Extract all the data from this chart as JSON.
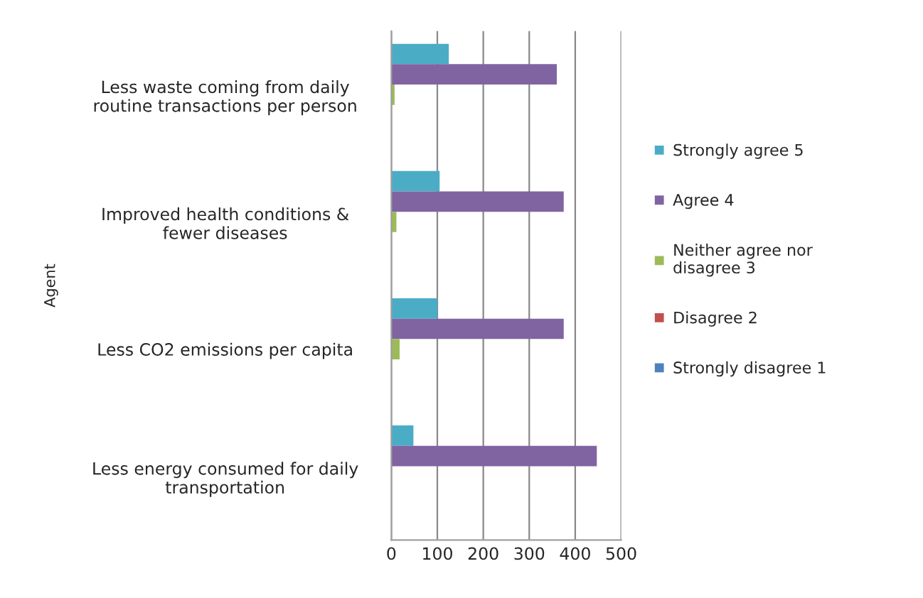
{
  "chart_data": {
    "type": "bar",
    "orientation": "horizontal",
    "ylabel": "Agent",
    "categories": [
      "Less waste coming from daily routine transactions per person",
      "Improved health conditions & fewer diseases",
      "Less CO2 emissions per capita",
      "Less energy consumed for daily transportation"
    ],
    "series": [
      {
        "name": "Strongly agree 5",
        "color": "#4bacc6",
        "values": [
          125,
          105,
          100,
          48
        ]
      },
      {
        "name": "Agree 4",
        "color": "#8064a2",
        "values": [
          360,
          375,
          375,
          447
        ]
      },
      {
        "name": "Neither agree nor disagree 3",
        "color": "#9bbb59",
        "values": [
          7,
          11,
          18,
          null
        ]
      },
      {
        "name": "Disagree 2",
        "color": "#c0504d",
        "values": [
          null,
          null,
          null,
          null
        ]
      },
      {
        "name": "Strongly disagree 1",
        "color": "#4f81bd",
        "values": [
          null,
          null,
          null,
          null
        ]
      }
    ],
    "xlim": [
      0,
      500
    ],
    "xticks": [
      0,
      100,
      200,
      300,
      400,
      500
    ],
    "grid": "x",
    "legend": "right"
  }
}
